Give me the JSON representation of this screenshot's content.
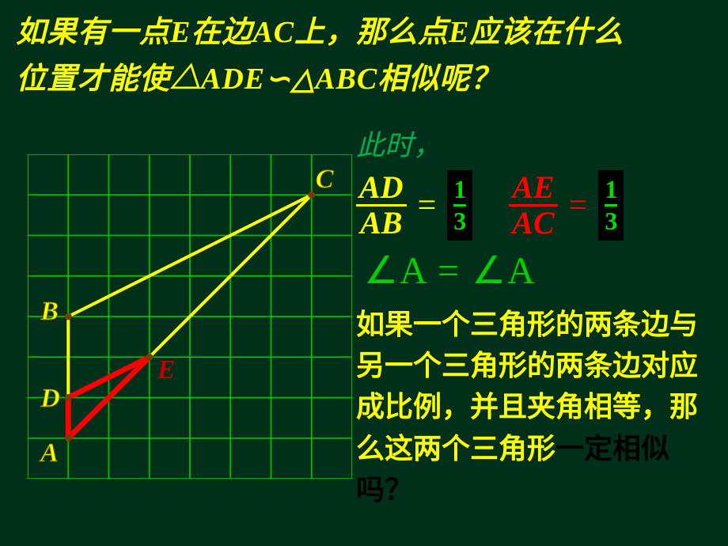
{
  "title_line1": "如果有一点E在边AC上，那么点E应该在什么",
  "title_line2": "位置才能使△ADE∽△ABC相似呢？",
  "annotation_lead": "此时，",
  "ratios": {
    "frac1": {
      "num": "AD",
      "den": "AB",
      "color": "#ffff00"
    },
    "result1": {
      "num": "1",
      "den": "3",
      "bg": "#000000",
      "fg": "#00e000"
    },
    "frac2": {
      "num": "AE",
      "den": "AC",
      "color": "#ff0000"
    },
    "result2": {
      "num": "1",
      "den": "3",
      "bg": "#000000",
      "fg": "#00e000"
    },
    "eq_symbol": "="
  },
  "angle_equation": "∠A = ∠A",
  "paragraph_yellow": "如果一个三角形的两条边与另一个三角形的两条边对应成比例，并且夹角相等，那么这两个三角形",
  "paragraph_black": "一定相似吗？",
  "diagram": {
    "grid": {
      "cells": 8,
      "size": 410,
      "line_color": "#00c000",
      "line_width": 1.8
    },
    "points": {
      "A": {
        "gx": 1,
        "gy": 7,
        "label_dx": -35,
        "label_dy": 0,
        "color": "#ffff00"
      },
      "D": {
        "gx": 1,
        "gy": 6,
        "label_dx": -35,
        "label_dy": -18,
        "color": "#ffff00"
      },
      "B": {
        "gx": 1,
        "gy": 4,
        "label_dx": -35,
        "label_dy": -25,
        "color": "#ffff00"
      },
      "C": {
        "gx": 7,
        "gy": 1,
        "label_dx": 5,
        "label_dy": -38,
        "color": "#ffff00"
      },
      "E": {
        "gx": 3,
        "gy": 5,
        "label_dx": 10,
        "label_dy": -2,
        "color": "#c00000"
      }
    },
    "yellow_lines": [
      [
        "A",
        "B"
      ],
      [
        "A",
        "C"
      ],
      [
        "B",
        "C"
      ]
    ],
    "red_lines": [
      [
        "A",
        "D"
      ],
      [
        "D",
        "E"
      ],
      [
        "E",
        "A"
      ]
    ],
    "style": {
      "yellow_stroke": "#ffff00",
      "yellow_width": 4,
      "red_stroke": "#ff0000",
      "red_width": 7,
      "point_color": "#7a3b00",
      "point_radius": 4.5
    }
  },
  "colors": {
    "background": "#002f1a",
    "title_text": "#ffff00",
    "green_text": "#00c040"
  }
}
